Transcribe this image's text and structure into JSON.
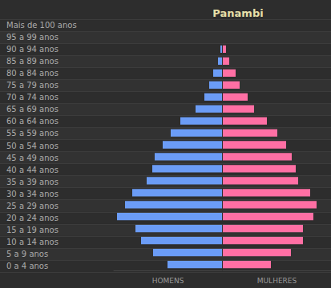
{
  "chart_data": {
    "type": "bar",
    "title": "Panambi",
    "orientation": "horizontal",
    "categories": [
      "0 a 4 anos",
      "5 a 9 anos",
      "10 a 14 anos",
      "15 a 19 anos",
      "20 a 24 anos",
      "25 a 29 anos",
      "30 a 34 anos",
      "35 a 39 anos",
      "40 a 44 anos",
      "45 a 49 anos",
      "50 a 54 anos",
      "55 a 59 anos",
      "60 a 64 anos",
      "65 a 69 anos",
      "70 a 74 anos",
      "75 a 79 anos",
      "80 a 84 anos",
      "85 a 89 anos",
      "90 a 94 anos",
      "95 a 99 anos",
      "Mais de 100 anos"
    ],
    "series": [
      {
        "name": "HOMENS",
        "color": "#6b9cf6",
        "values": [
          68,
          86,
          101,
          108,
          131,
          121,
          112,
          94,
          87,
          84,
          74,
          64,
          52,
          33,
          22,
          16,
          11,
          5,
          2,
          0,
          0
        ]
      },
      {
        "name": "MULHERES",
        "color": "#ff6fa4",
        "values": [
          60,
          85,
          100,
          100,
          113,
          117,
          109,
          94,
          91,
          86,
          79,
          68,
          55,
          39,
          31,
          21,
          16,
          8,
          4,
          0,
          0
        ]
      }
    ],
    "xlim": [
      0,
      135
    ],
    "tick_labels": "y",
    "grid": true
  }
}
